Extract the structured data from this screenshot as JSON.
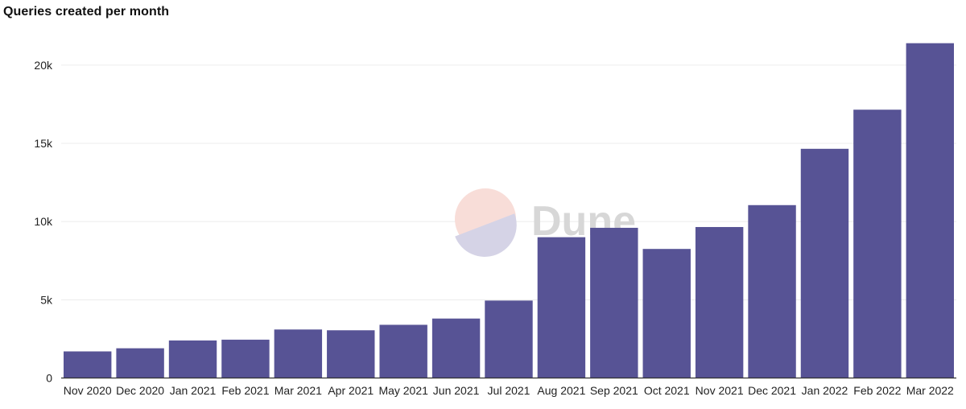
{
  "chart_data": {
    "type": "bar",
    "title": "Queries created per month",
    "xlabel": "",
    "ylabel": "",
    "categories": [
      "Nov 2020",
      "Dec 2020",
      "Jan 2021",
      "Feb 2021",
      "Mar 2021",
      "Apr 2021",
      "May 2021",
      "Jun 2021",
      "Jul 2021",
      "Aug 2021",
      "Sep 2021",
      "Oct 2021",
      "Nov 2021",
      "Dec 2021",
      "Jan 2022",
      "Feb 2022",
      "Mar 2022"
    ],
    "values": [
      1700,
      1900,
      2400,
      2450,
      3100,
      3050,
      3400,
      3800,
      4950,
      9000,
      9600,
      8250,
      9650,
      11050,
      14650,
      17150,
      21400
    ],
    "ylim": [
      0,
      22000
    ],
    "y_ticks": [
      0,
      5000,
      10000,
      15000,
      20000
    ],
    "y_tick_labels": [
      "0",
      "5k",
      "10k",
      "15k",
      "20k"
    ],
    "grid": true,
    "bar_color": "#575395",
    "grid_color": "#ececec",
    "axis_color": "#333333"
  },
  "watermark": {
    "text": "Dune",
    "logo_top_color": "#f8ddd8",
    "logo_bottom_color": "#d5d3e6"
  }
}
